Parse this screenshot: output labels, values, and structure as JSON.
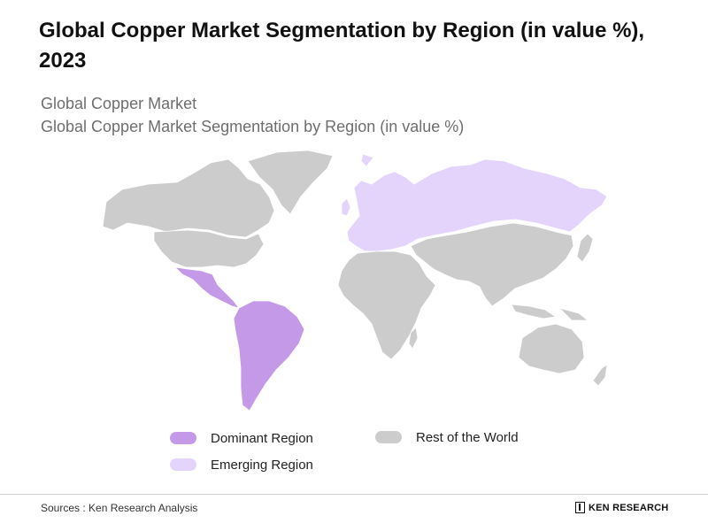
{
  "title": "Global Copper Market Segmentation by Region (in value %), 2023",
  "subtitle_1": "Global Copper Market",
  "subtitle_2": "Global Copper Market Segmentation by Region (in value %)",
  "legend": {
    "dominant": {
      "label": "Dominant Region",
      "color": "#c49ae8"
    },
    "emerging": {
      "label": "Emerging Region",
      "color": "#e4d4fb"
    },
    "rest": {
      "label": "Rest of the World",
      "color": "#cccccc"
    }
  },
  "source": "Sources : Ken Research Analysis",
  "logo_text": "KEN RESEARCH"
}
